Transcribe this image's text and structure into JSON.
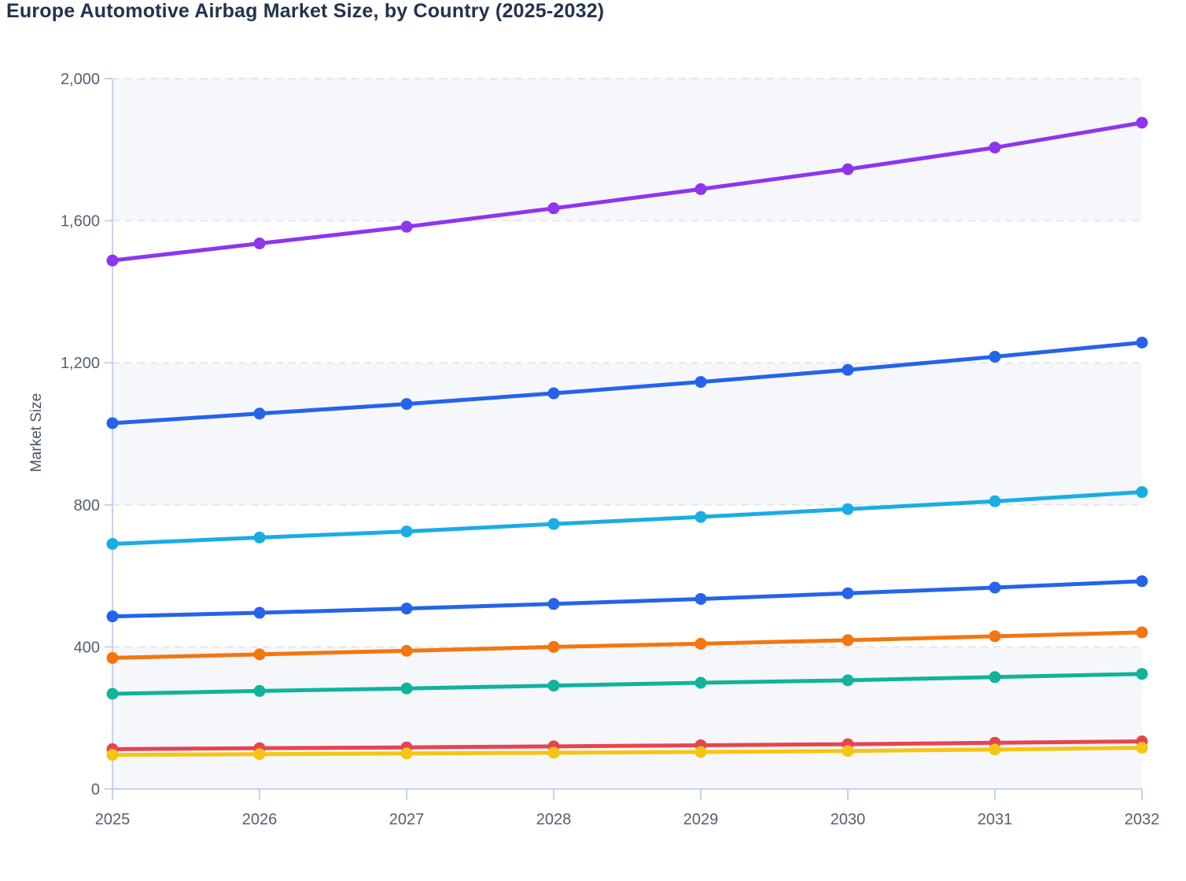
{
  "chart_data": {
    "type": "line",
    "title": "Europe Automotive Airbag Market Size, by Country (2025-2032)",
    "ylabel": "Market Size",
    "xlabel": "",
    "x": [
      2025,
      2026,
      2027,
      2028,
      2029,
      2030,
      2031,
      2032
    ],
    "ylim": [
      0,
      2000
    ],
    "yticks": [
      0,
      400,
      800,
      1200,
      1600,
      2000
    ],
    "grid": "horizontal dashed gridlines with alternating light band rows",
    "legend": "none",
    "series": [
      {
        "name": "series-violet",
        "color": "#8e35ef",
        "values": [
          1488,
          1536,
          1583,
          1635,
          1689,
          1745,
          1806,
          1876
        ]
      },
      {
        "name": "series-blue",
        "color": "#2563eb",
        "values": [
          1030,
          1057,
          1084,
          1114,
          1146,
          1180,
          1217,
          1257
        ]
      },
      {
        "name": "series-light-blue",
        "color": "#1aade3",
        "values": [
          690,
          708,
          725,
          746,
          766,
          788,
          810,
          836
        ]
      },
      {
        "name": "series-royal-blue",
        "color": "#2563eb",
        "values": [
          486,
          496,
          508,
          521,
          535,
          551,
          567,
          585
        ]
      },
      {
        "name": "series-orange",
        "color": "#f5750e",
        "values": [
          369,
          379,
          389,
          400,
          409,
          419,
          430,
          441
        ]
      },
      {
        "name": "series-teal",
        "color": "#10b39c",
        "values": [
          268,
          276,
          283,
          291,
          299,
          306,
          315,
          324
        ]
      },
      {
        "name": "series-red",
        "color": "#e84350",
        "values": [
          112,
          115,
          117,
          120,
          123,
          126,
          130,
          134
        ]
      },
      {
        "name": "series-yellow",
        "color": "#f5c513",
        "values": [
          96,
          98,
          100,
          102,
          104,
          107,
          111,
          116
        ]
      }
    ],
    "colors": {
      "title_text": "#22334f",
      "axis_title_text": "#4a5462",
      "tick_label_text": "#55606e",
      "axis_line": "#c7d1ea",
      "gridline": "#e4e6ea",
      "band_fill": "#f5f7fa"
    }
  }
}
